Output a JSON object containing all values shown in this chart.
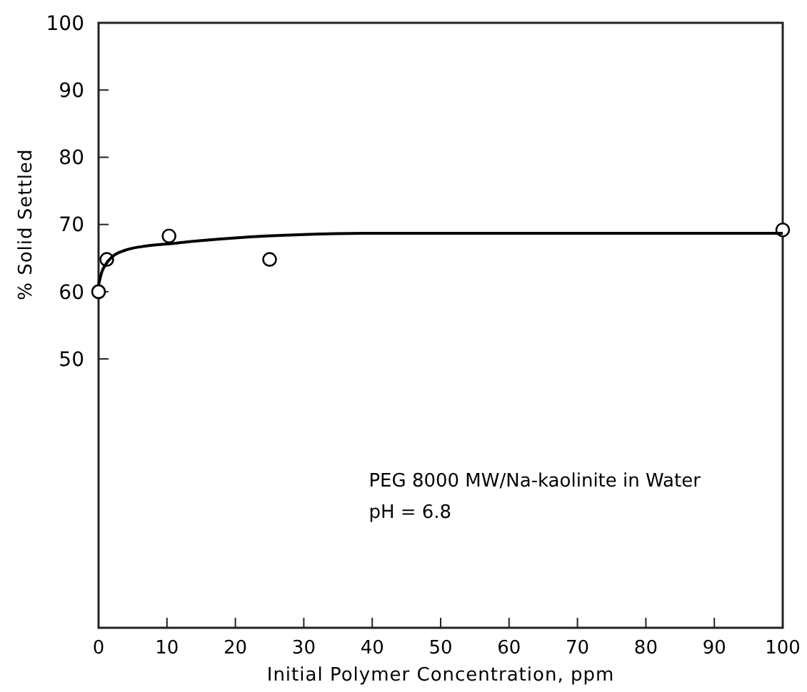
{
  "chart_data": {
    "type": "scatter",
    "xlabel": "Initial Polymer Concentration, ppm",
    "ylabel": "% Solid Settled",
    "annotations": [
      "PEG 8000 MW/Na-kaolinite in Water",
      "pH = 6.8"
    ],
    "xlim": [
      0,
      100
    ],
    "xticks": [
      0,
      10,
      20,
      30,
      40,
      50,
      60,
      70,
      80,
      90,
      100
    ],
    "ylim": [
      10,
      100
    ],
    "yticks": [
      50,
      60,
      70,
      80,
      90,
      100
    ],
    "grid": false,
    "marker": "circle",
    "series": [
      {
        "color": "#000000",
        "x": [
          0,
          1.2,
          10.3,
          25,
          100
        ],
        "values": [
          60,
          64.8,
          68.3,
          64.8,
          69.2
        ]
      },
      {
        "type": "line",
        "color": "#000000",
        "marker": "none",
        "line_style": "solid",
        "x": [
          0,
          0.5,
          1,
          2,
          4,
          7,
          10,
          15,
          20,
          30,
          40,
          100
        ],
        "values": [
          61,
          63,
          64,
          65.2,
          66.2,
          66.8,
          67.1,
          67.6,
          68,
          68.5,
          68.7,
          68.7
        ]
      }
    ]
  }
}
